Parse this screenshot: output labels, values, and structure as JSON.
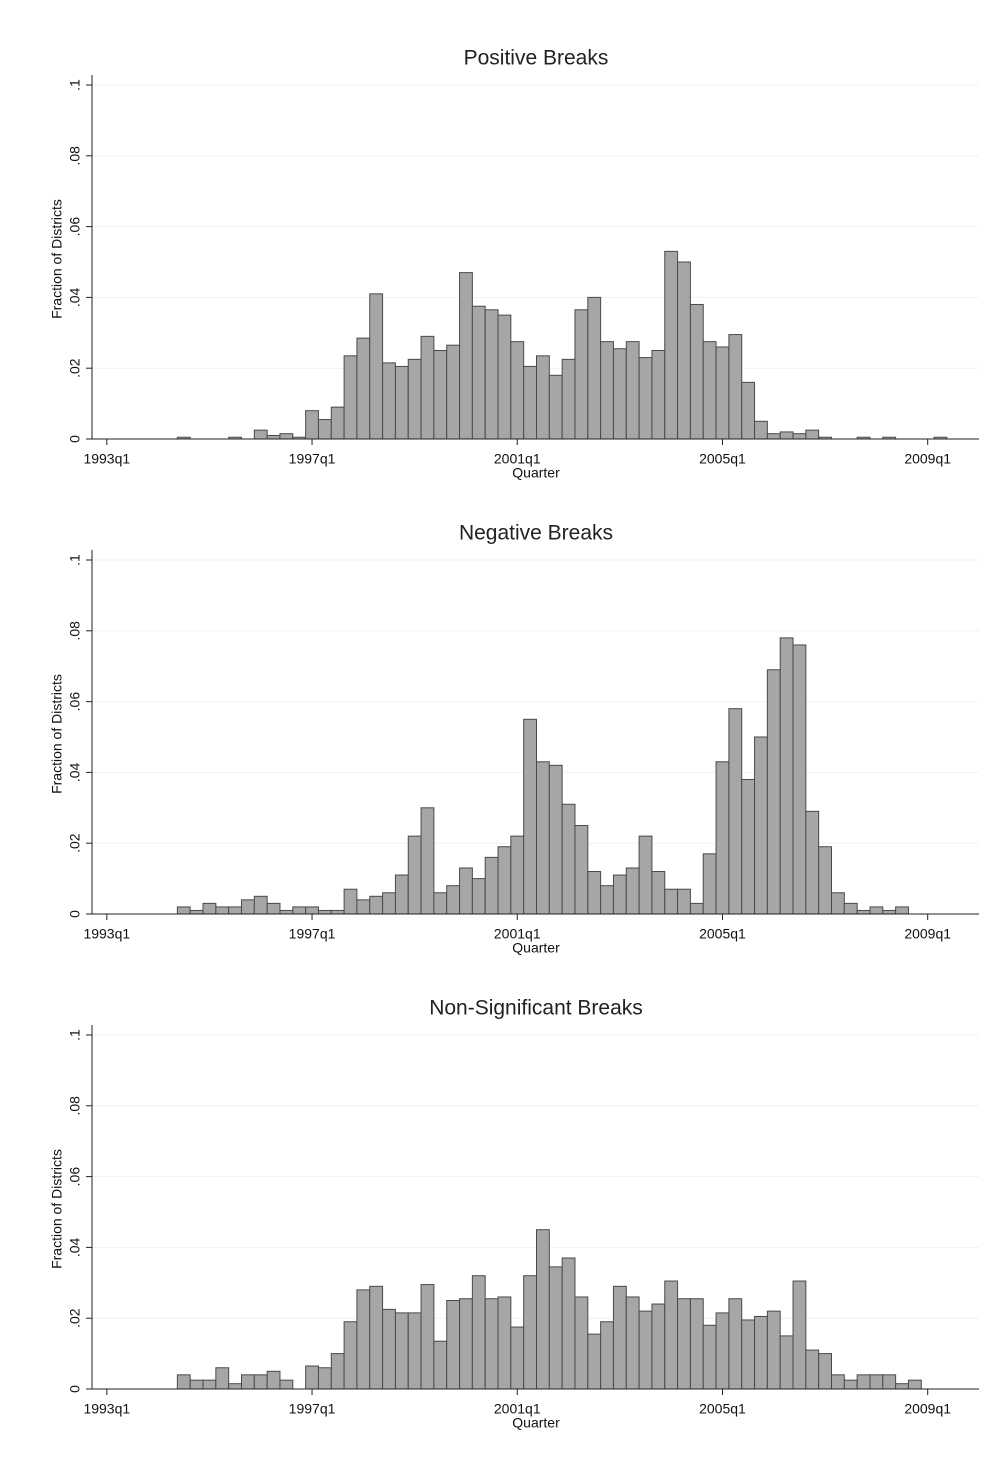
{
  "chart_data": [
    {
      "type": "bar",
      "title": "Positive Breaks",
      "xlabel": "Quarter",
      "ylabel": "Fraction of Districts",
      "color": "#a6a6a6",
      "grid": true,
      "x": [
        138,
        142,
        144,
        145,
        146,
        147,
        148,
        149,
        150,
        151,
        152,
        153,
        154,
        155,
        156,
        157,
        158,
        159,
        160,
        161,
        162,
        163,
        164,
        165,
        166,
        167,
        168,
        169,
        170,
        171,
        172,
        173,
        174,
        175,
        176,
        177,
        178,
        179,
        180,
        181,
        182,
        183,
        184,
        185,
        186,
        187,
        188,
        191,
        193,
        197
      ],
      "values": [
        0.0005,
        0.0005,
        0.0025,
        0.001,
        0.0015,
        0.0005,
        0.008,
        0.0055,
        0.009,
        0.0235,
        0.0285,
        0.041,
        0.0215,
        0.0205,
        0.0225,
        0.029,
        0.025,
        0.0265,
        0.047,
        0.0375,
        0.0365,
        0.035,
        0.0275,
        0.0205,
        0.0235,
        0.018,
        0.0225,
        0.0365,
        0.04,
        0.0275,
        0.0255,
        0.0275,
        0.023,
        0.025,
        0.053,
        0.05,
        0.038,
        0.0275,
        0.026,
        0.0295,
        0.016,
        0.005,
        0.0015,
        0.002,
        0.0015,
        0.0025,
        0.0005,
        0.0005,
        0.0005,
        0.0005
      ],
      "xlim": [
        131,
        200
      ],
      "xticks": [
        {
          "value": 132,
          "label": "1993q1"
        },
        {
          "value": 148,
          "label": "1997q1"
        },
        {
          "value": 164,
          "label": "2001q1"
        },
        {
          "value": 180,
          "label": "2005q1"
        },
        {
          "value": 196,
          "label": "2009q1"
        }
      ],
      "ylim": [
        0,
        0.1
      ],
      "yticks": [
        0,
        {
          "value": 0.02,
          "label": ".02"
        },
        {
          "value": 0.04,
          "label": ".04"
        },
        {
          "value": 0.06,
          "label": ".06"
        },
        {
          "value": 0.08,
          "label": ".08"
        },
        {
          "value": 0.1,
          "label": ".1"
        }
      ]
    },
    {
      "type": "bar",
      "title": "Negative Breaks",
      "xlabel": "Quarter",
      "ylabel": "Fraction of Districts",
      "color": "#a6a6a6",
      "grid": true,
      "x": [
        138,
        139,
        140,
        141,
        142,
        143,
        144,
        145,
        146,
        147,
        148,
        149,
        150,
        151,
        152,
        153,
        154,
        155,
        156,
        157,
        158,
        159,
        160,
        161,
        162,
        163,
        164,
        165,
        166,
        167,
        168,
        169,
        170,
        171,
        172,
        173,
        174,
        175,
        176,
        177,
        178,
        179,
        180,
        181,
        182,
        183,
        184,
        185,
        186,
        187,
        188,
        189,
        190,
        191,
        192,
        193,
        194
      ],
      "values": [
        0.002,
        0.001,
        0.003,
        0.002,
        0.002,
        0.004,
        0.005,
        0.003,
        0.001,
        0.002,
        0.002,
        0.001,
        0.001,
        0.007,
        0.004,
        0.005,
        0.006,
        0.011,
        0.022,
        0.03,
        0.006,
        0.008,
        0.013,
        0.01,
        0.016,
        0.019,
        0.022,
        0.055,
        0.043,
        0.042,
        0.031,
        0.025,
        0.012,
        0.008,
        0.011,
        0.013,
        0.022,
        0.012,
        0.007,
        0.007,
        0.003,
        0.017,
        0.043,
        0.058,
        0.038,
        0.05,
        0.069,
        0.078,
        0.076,
        0.029,
        0.019,
        0.006,
        0.003,
        0.001,
        0.002,
        0.001,
        0.002
      ],
      "xlim": [
        131,
        200
      ],
      "xticks": [
        {
          "value": 132,
          "label": "1993q1"
        },
        {
          "value": 148,
          "label": "1997q1"
        },
        {
          "value": 164,
          "label": "2001q1"
        },
        {
          "value": 180,
          "label": "2005q1"
        },
        {
          "value": 196,
          "label": "2009q1"
        }
      ],
      "ylim": [
        0,
        0.1
      ],
      "yticks": [
        0,
        {
          "value": 0.02,
          "label": ".02"
        },
        {
          "value": 0.04,
          "label": ".04"
        },
        {
          "value": 0.06,
          "label": ".06"
        },
        {
          "value": 0.08,
          "label": ".08"
        },
        {
          "value": 0.1,
          "label": ".1"
        }
      ]
    },
    {
      "type": "bar",
      "title": "Non-Significant Breaks",
      "xlabel": "Quarter",
      "ylabel": "Fraction of Districts",
      "color": "#a6a6a6",
      "grid": true,
      "x": [
        138,
        139,
        140,
        141,
        142,
        143,
        144,
        145,
        146,
        148,
        149,
        150,
        151,
        152,
        153,
        154,
        155,
        156,
        157,
        158,
        159,
        160,
        161,
        162,
        163,
        164,
        165,
        166,
        167,
        168,
        169,
        170,
        171,
        172,
        173,
        174,
        175,
        176,
        177,
        178,
        179,
        180,
        181,
        182,
        183,
        184,
        185,
        186,
        187,
        188,
        189,
        190,
        191,
        192,
        193,
        194,
        195
      ],
      "values": [
        0.004,
        0.0025,
        0.0025,
        0.006,
        0.0015,
        0.004,
        0.004,
        0.005,
        0.0025,
        0.0065,
        0.006,
        0.01,
        0.019,
        0.028,
        0.029,
        0.0225,
        0.0215,
        0.0215,
        0.0295,
        0.0135,
        0.025,
        0.0255,
        0.032,
        0.0255,
        0.026,
        0.0175,
        0.032,
        0.045,
        0.0345,
        0.037,
        0.026,
        0.0155,
        0.019,
        0.029,
        0.026,
        0.022,
        0.024,
        0.0305,
        0.0255,
        0.0255,
        0.018,
        0.0215,
        0.0255,
        0.0195,
        0.0205,
        0.022,
        0.015,
        0.0305,
        0.011,
        0.01,
        0.004,
        0.0025,
        0.004,
        0.004,
        0.004,
        0.0015,
        0.0025
      ],
      "xlim": [
        131,
        200
      ],
      "xticks": [
        {
          "value": 132,
          "label": "1993q1"
        },
        {
          "value": 148,
          "label": "1997q1"
        },
        {
          "value": 164,
          "label": "2001q1"
        },
        {
          "value": 180,
          "label": "2005q1"
        },
        {
          "value": 196,
          "label": "2009q1"
        }
      ],
      "ylim": [
        0,
        0.1
      ],
      "yticks": [
        0,
        {
          "value": 0.02,
          "label": ".02"
        },
        {
          "value": 0.04,
          "label": ".04"
        },
        {
          "value": 0.06,
          "label": ".06"
        },
        {
          "value": 0.08,
          "label": ".08"
        },
        {
          "value": 0.1,
          "label": ".1"
        }
      ]
    }
  ]
}
